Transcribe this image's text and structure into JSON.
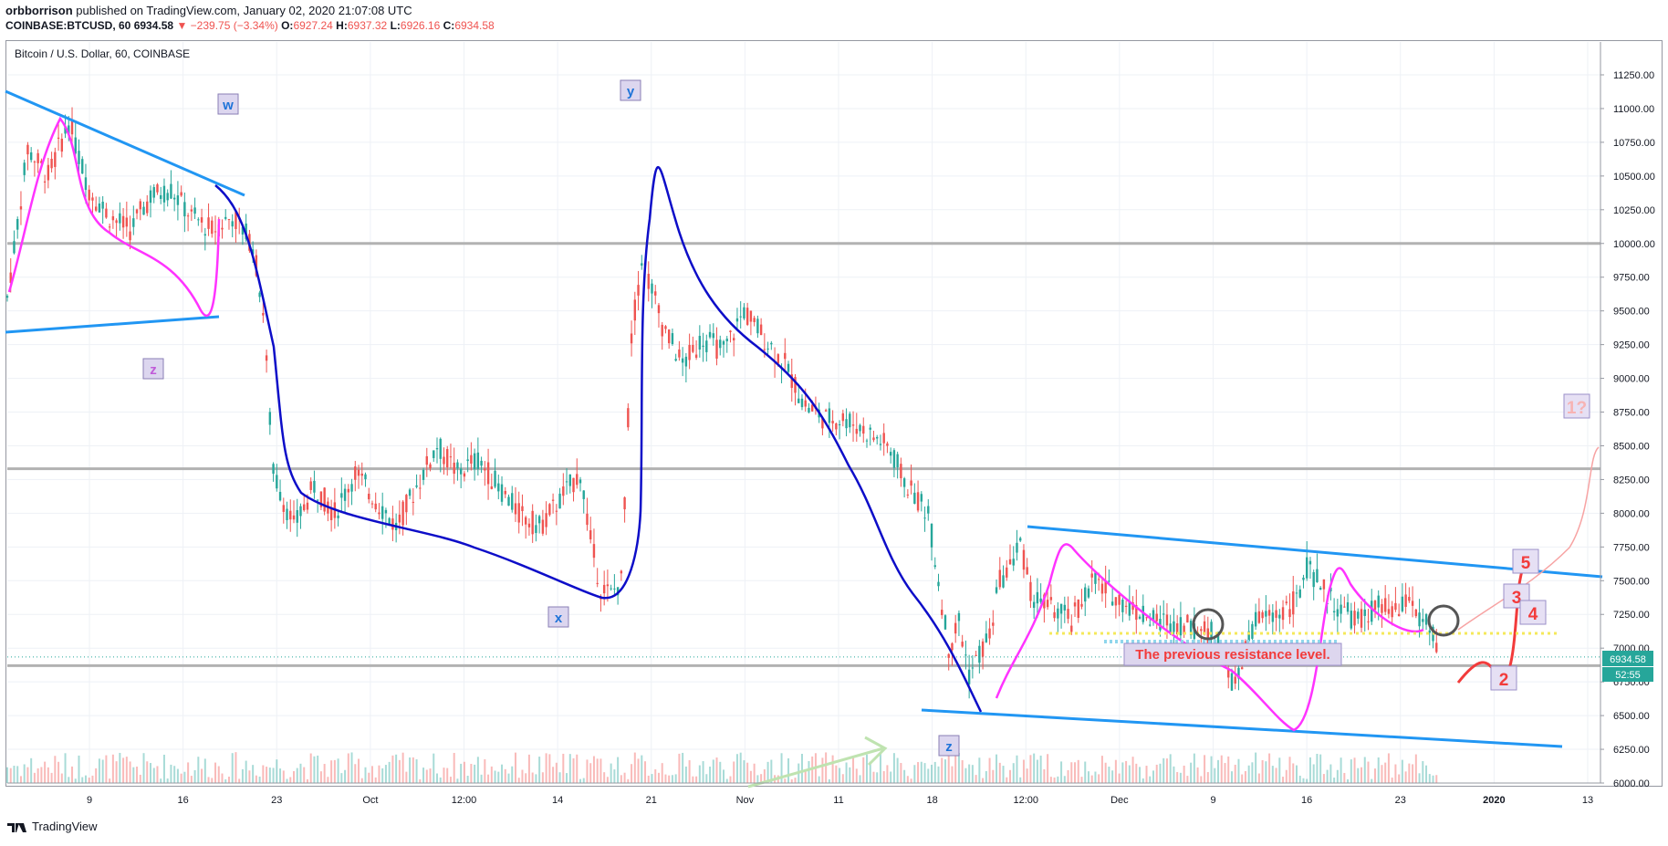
{
  "header": {
    "author": "orbborrison",
    "published": "published on TradingView.com, January 02, 2020 21:07:08 UTC",
    "symbol_line": "COINBASE:BTCUSD, 60",
    "price": "6934.58",
    "change": "−239.75 (−3.34%)",
    "open_label": "O:",
    "open": "6927.24",
    "high_label": "H:",
    "high": "6937.32",
    "low_label": "L:",
    "low": "6926.16",
    "close_label": "C:",
    "close": "6934.58"
  },
  "symbol_label": "Bitcoin / U.S. Dollar, 60, COINBASE",
  "footer": {
    "brand": "TradingView"
  },
  "colors": {
    "up": "#26a69a",
    "down": "#ef5350",
    "trendline": "#2196f3",
    "path_blue": "#0d0dc8",
    "path_magenta": "#ff33ff",
    "grey_level": "#b2b2b2",
    "projection": "#f23b3b"
  },
  "chart_data": {
    "type": "candlestick",
    "title": "Bitcoin / U.S. Dollar, 60, COINBASE",
    "ylim": [
      6000,
      11500
    ],
    "y_ticks": [
      "11250.00",
      "11000.00",
      "10750.00",
      "10500.00",
      "10250.00",
      "10000.00",
      "9750.00",
      "9500.00",
      "9250.00",
      "9000.00",
      "8750.00",
      "8500.00",
      "8250.00",
      "8000.00",
      "7750.00",
      "7500.00",
      "7250.00",
      "7000.00",
      "6750.00",
      "6500.00",
      "6250.00",
      "6000.00"
    ],
    "x_ticks": [
      "9",
      "16",
      "23",
      "Oct",
      "12:00",
      "14",
      "21",
      "Nov",
      "11",
      "18",
      "12:00",
      "Dec",
      "9",
      "16",
      "23",
      "2020",
      "13"
    ],
    "price_path": [
      {
        "x": 0,
        "y": 9600
      },
      {
        "x": 2,
        "y": 10700
      },
      {
        "x": 4,
        "y": 10500
      },
      {
        "x": 6,
        "y": 10900
      },
      {
        "x": 8,
        "y": 10400
      },
      {
        "x": 10,
        "y": 10200
      },
      {
        "x": 12,
        "y": 10100
      },
      {
        "x": 14,
        "y": 10350
      },
      {
        "x": 16,
        "y": 10400
      },
      {
        "x": 18,
        "y": 10200
      },
      {
        "x": 20,
        "y": 10100
      },
      {
        "x": 22,
        "y": 10200
      },
      {
        "x": 24,
        "y": 10000
      },
      {
        "x": 25,
        "y": 9500
      },
      {
        "x": 26,
        "y": 8300
      },
      {
        "x": 27,
        "y": 8100
      },
      {
        "x": 28,
        "y": 7900
      },
      {
        "x": 30,
        "y": 8200
      },
      {
        "x": 32,
        "y": 8000
      },
      {
        "x": 34,
        "y": 8300
      },
      {
        "x": 36,
        "y": 8100
      },
      {
        "x": 38,
        "y": 7900
      },
      {
        "x": 40,
        "y": 8200
      },
      {
        "x": 42,
        "y": 8500
      },
      {
        "x": 44,
        "y": 8300
      },
      {
        "x": 46,
        "y": 8400
      },
      {
        "x": 48,
        "y": 8200
      },
      {
        "x": 50,
        "y": 8000
      },
      {
        "x": 52,
        "y": 7900
      },
      {
        "x": 54,
        "y": 8100
      },
      {
        "x": 56,
        "y": 8300
      },
      {
        "x": 57,
        "y": 7800
      },
      {
        "x": 58,
        "y": 7450
      },
      {
        "x": 59,
        "y": 7400
      },
      {
        "x": 60,
        "y": 7500
      },
      {
        "x": 61,
        "y": 9300
      },
      {
        "x": 62,
        "y": 9900
      },
      {
        "x": 64,
        "y": 9400
      },
      {
        "x": 66,
        "y": 9100
      },
      {
        "x": 68,
        "y": 9300
      },
      {
        "x": 70,
        "y": 9200
      },
      {
        "x": 72,
        "y": 9500
      },
      {
        "x": 74,
        "y": 9300
      },
      {
        "x": 76,
        "y": 9100
      },
      {
        "x": 78,
        "y": 8800
      },
      {
        "x": 80,
        "y": 8700
      },
      {
        "x": 82,
        "y": 8700
      },
      {
        "x": 84,
        "y": 8600
      },
      {
        "x": 86,
        "y": 8500
      },
      {
        "x": 88,
        "y": 8200
      },
      {
        "x": 90,
        "y": 8000
      },
      {
        "x": 91,
        "y": 7500
      },
      {
        "x": 92,
        "y": 7000
      },
      {
        "x": 93,
        "y": 7200
      },
      {
        "x": 94,
        "y": 6800
      },
      {
        "x": 96,
        "y": 7100
      },
      {
        "x": 97,
        "y": 7500
      },
      {
        "x": 98,
        "y": 7600
      },
      {
        "x": 99,
        "y": 7800
      },
      {
        "x": 100,
        "y": 7400
      },
      {
        "x": 102,
        "y": 7300
      },
      {
        "x": 104,
        "y": 7200
      },
      {
        "x": 106,
        "y": 7500
      },
      {
        "x": 108,
        "y": 7400
      },
      {
        "x": 110,
        "y": 7300
      },
      {
        "x": 112,
        "y": 7200
      },
      {
        "x": 114,
        "y": 7200
      },
      {
        "x": 116,
        "y": 7150
      },
      {
        "x": 118,
        "y": 7100
      },
      {
        "x": 119,
        "y": 6900
      },
      {
        "x": 120,
        "y": 6700
      },
      {
        "x": 121,
        "y": 7000
      },
      {
        "x": 122,
        "y": 7200
      },
      {
        "x": 124,
        "y": 7250
      },
      {
        "x": 126,
        "y": 7350
      },
      {
        "x": 127,
        "y": 7600
      },
      {
        "x": 128,
        "y": 7500
      },
      {
        "x": 130,
        "y": 7300
      },
      {
        "x": 132,
        "y": 7200
      },
      {
        "x": 134,
        "y": 7300
      },
      {
        "x": 136,
        "y": 7250
      },
      {
        "x": 137,
        "y": 7400
      },
      {
        "x": 138,
        "y": 7200
      },
      {
        "x": 139,
        "y": 7150
      },
      {
        "x": 140,
        "y": 6950
      }
    ],
    "horizontal_levels": [
      10000,
      8330,
      6870
    ],
    "annotations": {
      "wave_labels": [
        "w",
        "z",
        "y",
        "x",
        "z"
      ],
      "projection_labels": [
        "5",
        "3",
        "4",
        "2",
        "1?"
      ],
      "note": "The previous resistance level."
    },
    "last_price": "6934.58",
    "countdown": "52:55"
  }
}
